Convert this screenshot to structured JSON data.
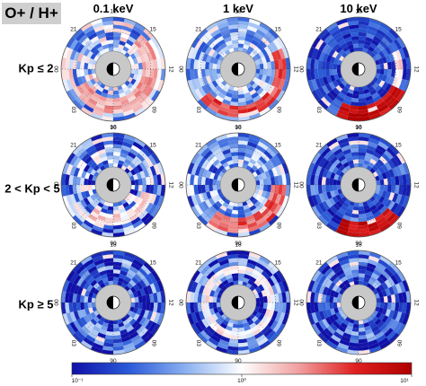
{
  "title": "O+ / H+",
  "chart_data": {
    "type": "heatmap",
    "projection": "polar (MLT)",
    "title": "O+ / H+",
    "columns": [
      "0.1 keV",
      "1 keV",
      "10 keV"
    ],
    "rows": [
      "Kp ≤ 2",
      "2 < Kp < 5",
      "Kp ≥ 5"
    ],
    "mlt_labels": {
      "top": "18",
      "right": "12",
      "bottom": "06",
      "left": "00",
      "upper_left": "21",
      "upper_right": "15",
      "lower_left": "03",
      "lower_right": "09"
    },
    "colorbar": {
      "scale": "log",
      "range": [
        0.1,
        10
      ],
      "tick_labels": [
        "10⁻¹",
        "10⁰",
        "10¹"
      ],
      "colors": [
        "#1010a8",
        "#2a5ad8",
        "#8ab0f0",
        "#ffffff",
        "#f0a0a0",
        "#e02020",
        "#b00000"
      ]
    },
    "panels": [
      {
        "row": "Kp ≤ 2",
        "column": "0.1 keV",
        "dominant": "mixed",
        "enhancement_mlt": "dusk/midnight ring, moderate O+/H+ ~1–3"
      },
      {
        "row": "Kp ≤ 2",
        "column": "1 keV",
        "dominant": "O+ enhanced",
        "enhancement_mlt": "dusk-to-midnight band, O+/H+ ~3–5"
      },
      {
        "row": "Kp ≤ 2",
        "column": "10 keV",
        "dominant": "H+",
        "enhancement_mlt": "intense O+ patch near 15–18 MLT, O+/H+ ~10"
      },
      {
        "row": "2 < Kp < 5",
        "column": "0.1 keV",
        "dominant": "mixed",
        "enhancement_mlt": "scattered, ~0.3–3"
      },
      {
        "row": "2 < Kp < 5",
        "column": "1 keV",
        "dominant": "O+ enhanced",
        "enhancement_mlt": "dusk sector band, ~3–5"
      },
      {
        "row": "2 < Kp < 5",
        "column": "10 keV",
        "dominant": "H+",
        "enhancement_mlt": "intense O+ patch near 15–18 MLT, ~10"
      },
      {
        "row": "Kp ≥ 5",
        "column": "0.1 keV",
        "dominant": "H+",
        "enhancement_mlt": "sparse, ~0.2–1"
      },
      {
        "row": "Kp ≥ 5",
        "column": "1 keV",
        "dominant": "H+",
        "enhancement_mlt": "sparse red streaks, ~0.3–3"
      },
      {
        "row": "Kp ≥ 5",
        "column": "10 keV",
        "dominant": "H+",
        "enhancement_mlt": "sparse, ~0.3–2"
      }
    ]
  }
}
